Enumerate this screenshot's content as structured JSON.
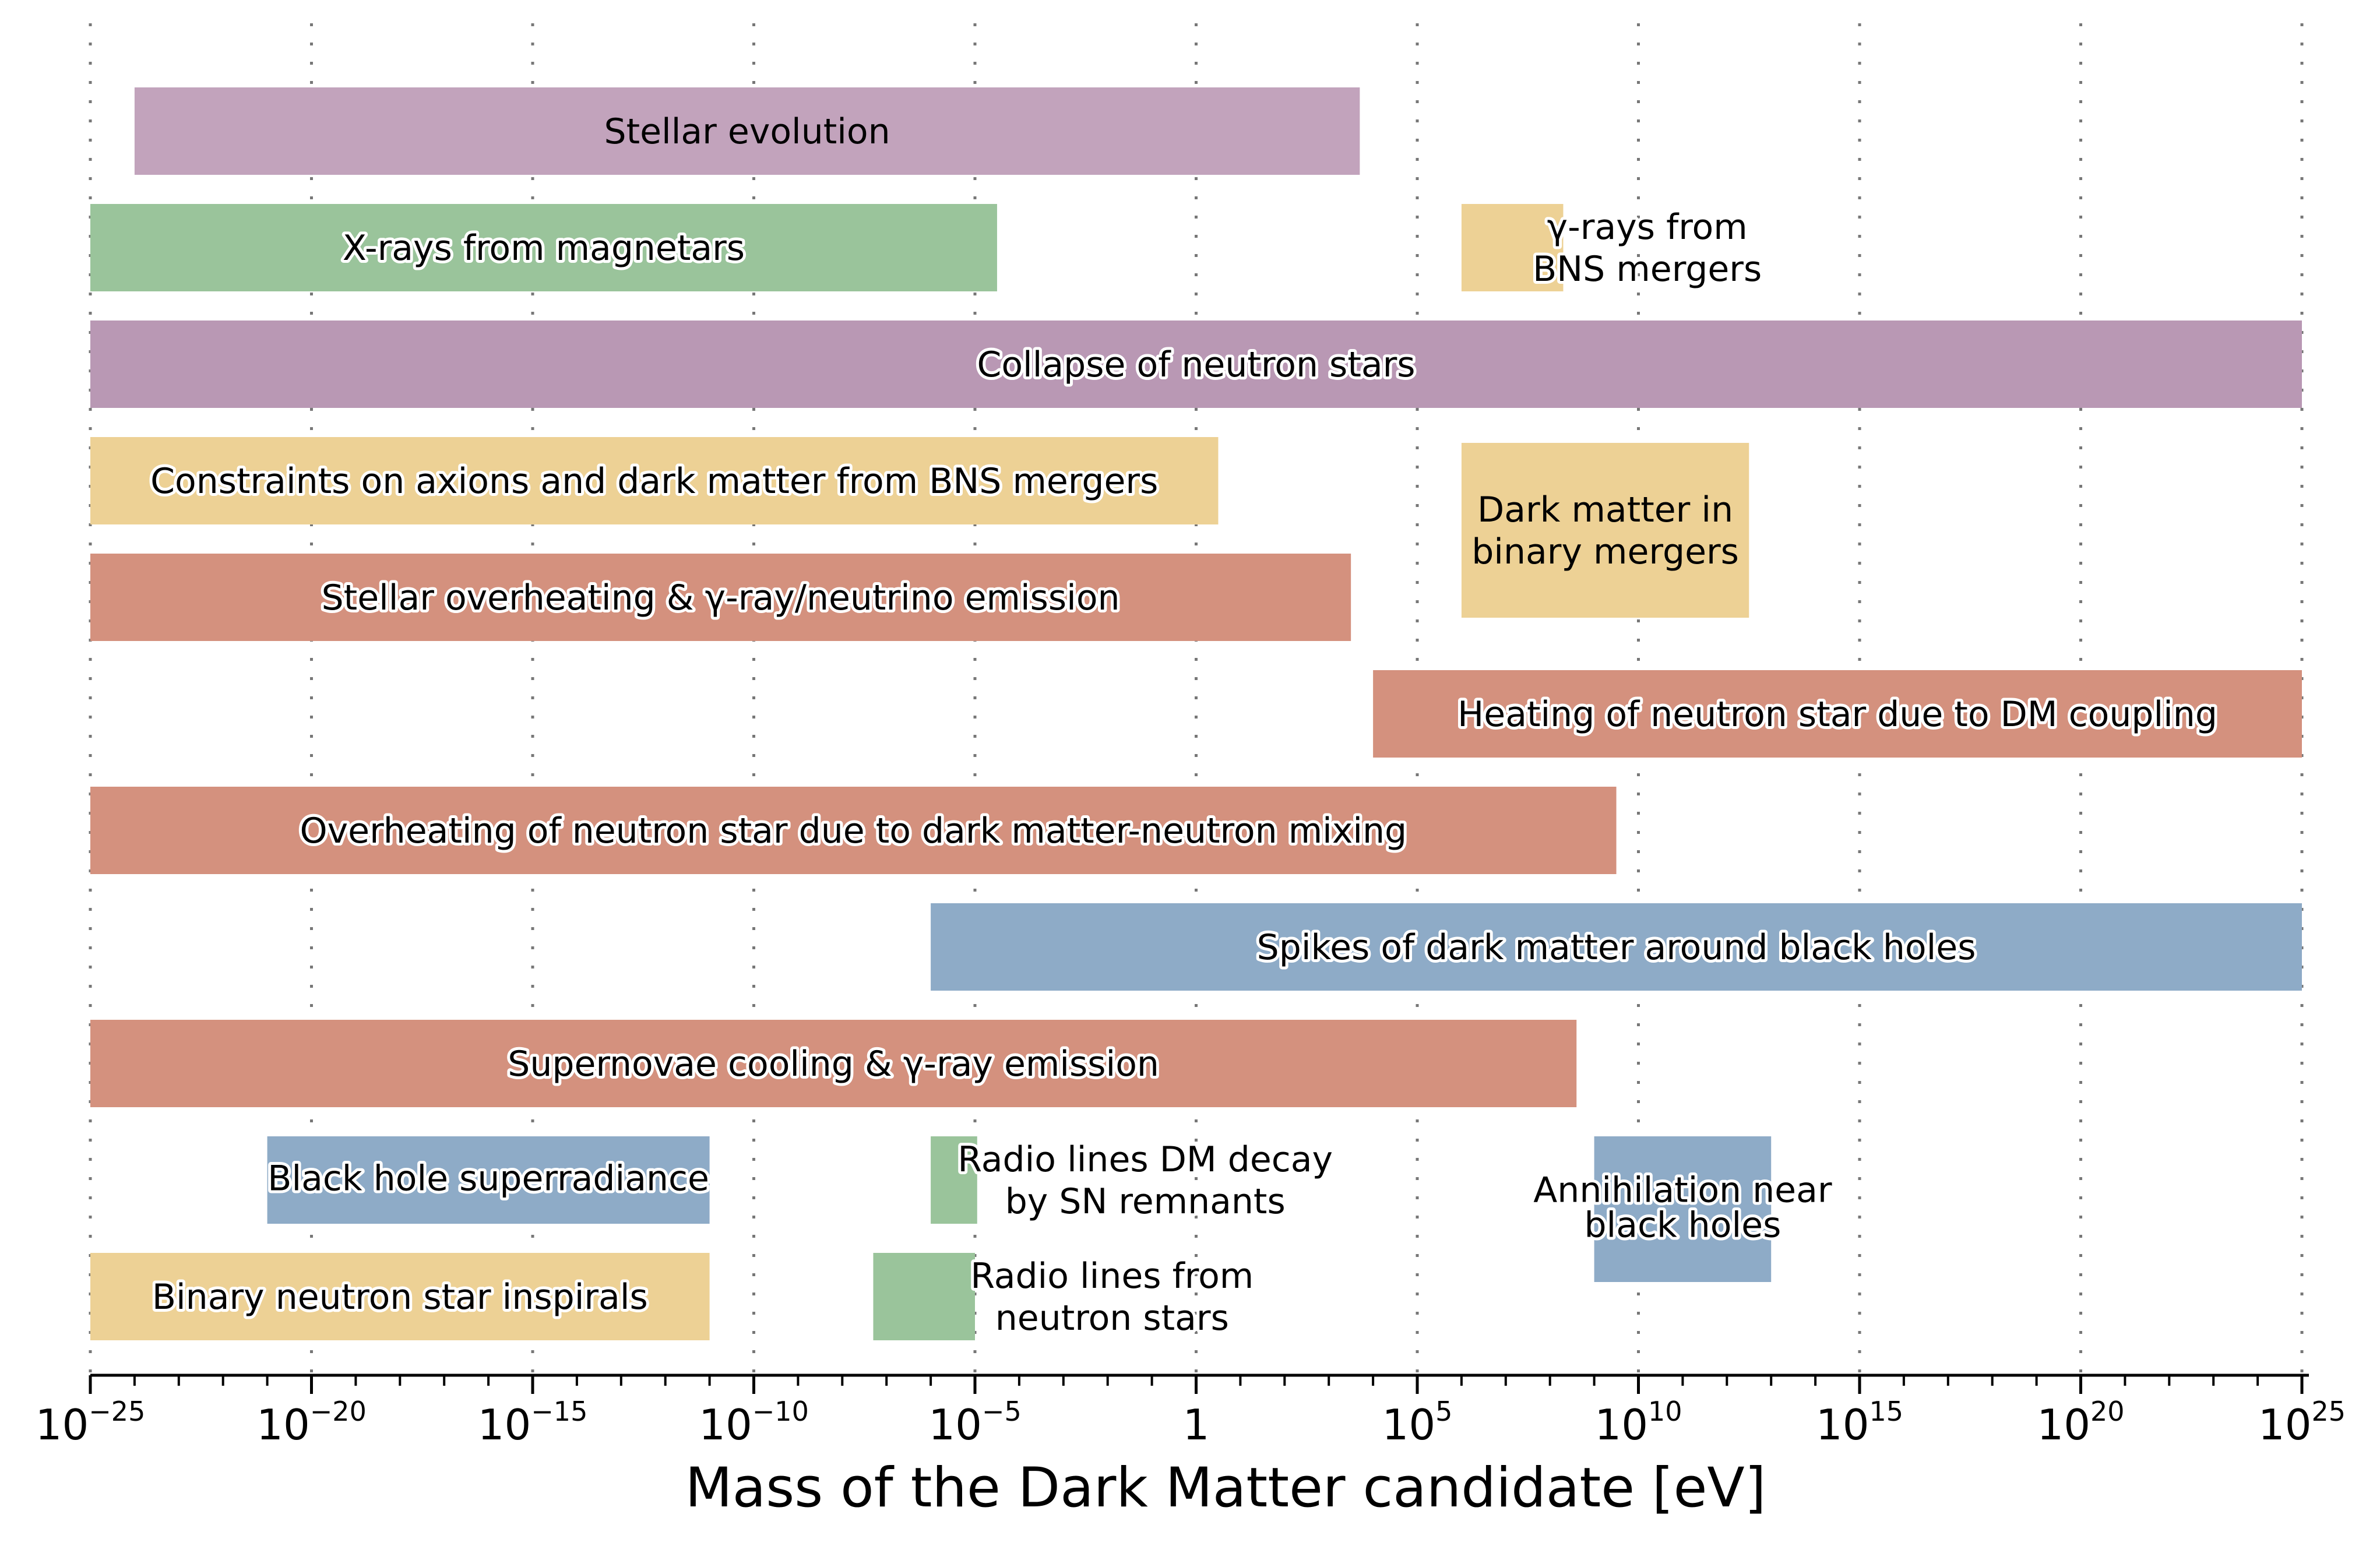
{
  "chart_data": {
    "type": "bar",
    "orientation": "horizontal",
    "xlabel": "Mass of the Dark Matter candidate [eV]",
    "xscale": "log",
    "xlim": [
      1e-25,
      1e+25
    ],
    "grid": "vertical dotted at every 1e5 decade",
    "x_tick_labels": [
      {
        "base": "10",
        "exp": "−25",
        "value": -25
      },
      {
        "base": "10",
        "exp": "−20",
        "value": -20
      },
      {
        "base": "10",
        "exp": "−15",
        "value": -15
      },
      {
        "base": "10",
        "exp": "−10",
        "value": -10
      },
      {
        "base": "10",
        "exp": "−5",
        "value": -5
      },
      {
        "base": "1",
        "exp": "",
        "value": 0
      },
      {
        "base": "10",
        "exp": "5",
        "value": 5
      },
      {
        "base": "10",
        "exp": "10",
        "value": 10
      },
      {
        "base": "10",
        "exp": "15",
        "value": 15
      },
      {
        "base": "10",
        "exp": "20",
        "value": 20
      },
      {
        "base": "10",
        "exp": "25",
        "value": 25
      }
    ],
    "colors": {
      "purple": "#c2a3bc",
      "purple_dark": "#b998b4",
      "green": "#9ac49b",
      "yellow": "#edd195",
      "red": "#d4917e",
      "blue": "#8eabc7"
    },
    "bars": [
      {
        "label": [
          "Stellar evolution"
        ],
        "x_min_log10": -24,
        "x_max_log10": 3.7,
        "row_top": 0.5,
        "row_bottom": 1.25,
        "color": "purple",
        "halo": false
      },
      {
        "label": [
          "X-rays from magnetars"
        ],
        "x_min_log10": -25,
        "x_max_log10": -4.5,
        "row_top": 1.5,
        "row_bottom": 2.25,
        "color": "green",
        "halo": true
      },
      {
        "label": [
          "γ-rays from",
          "BNS mergers"
        ],
        "x_min_log10": 6,
        "x_max_log10": 8.3,
        "row_top": 1.5,
        "row_bottom": 2.25,
        "color": "yellow",
        "halo": true,
        "label_x_log10": 10.2
      },
      {
        "label": [
          "Collapse of neutron stars"
        ],
        "x_min_log10": -25,
        "x_max_log10": 25,
        "row_top": 2.5,
        "row_bottom": 3.25,
        "color": "purple_dark",
        "halo": true
      },
      {
        "label": [
          "Constraints on axions and dark matter from BNS mergers"
        ],
        "x_min_log10": -25,
        "x_max_log10": 0.5,
        "row_top": 3.5,
        "row_bottom": 4.25,
        "color": "yellow",
        "halo": true
      },
      {
        "label": [
          "Dark matter in",
          "binary mergers"
        ],
        "x_min_log10": 6,
        "x_max_log10": 12.5,
        "row_top": 3.55,
        "row_bottom": 5.05,
        "color": "yellow",
        "halo": false
      },
      {
        "label": [
          "Stellar overheating & γ-ray/neutrino emission"
        ],
        "x_min_log10": -25,
        "x_max_log10": 3.5,
        "row_top": 4.5,
        "row_bottom": 5.25,
        "color": "red",
        "halo": true
      },
      {
        "label": [
          "Heating of neutron star due to DM coupling"
        ],
        "x_min_log10": 4,
        "x_max_log10": 25,
        "row_top": 5.5,
        "row_bottom": 6.25,
        "color": "red",
        "halo": true
      },
      {
        "label": [
          "Overheating of neutron star due to dark matter-neutron mixing"
        ],
        "x_min_log10": -25,
        "x_max_log10": 9.5,
        "row_top": 6.5,
        "row_bottom": 7.25,
        "color": "red",
        "halo": true
      },
      {
        "label": [
          "Spikes of dark matter around black holes"
        ],
        "x_min_log10": -6,
        "x_max_log10": 25,
        "row_top": 7.5,
        "row_bottom": 8.25,
        "color": "blue",
        "halo": true
      },
      {
        "label": [
          "Supernovae cooling & γ-ray emission"
        ],
        "x_min_log10": -25,
        "x_max_log10": 8.6,
        "row_top": 8.5,
        "row_bottom": 9.25,
        "color": "red",
        "halo": true
      },
      {
        "label": [
          "Black hole superradiance"
        ],
        "x_min_log10": -21,
        "x_max_log10": -11,
        "row_top": 9.5,
        "row_bottom": 10.25,
        "color": "blue",
        "halo": true,
        "small": true
      },
      {
        "label": [
          "Radio lines DM decay",
          "by SN remnants"
        ],
        "x_min_log10": -6,
        "x_max_log10": -4.95,
        "row_top": 9.5,
        "row_bottom": 10.25,
        "color": "green",
        "halo": true,
        "label_x_log10": -1.15
      },
      {
        "label": [
          "Annihilation near",
          "black holes"
        ],
        "x_min_log10": 9,
        "x_max_log10": 13,
        "row_top": 9.5,
        "row_bottom": 10.75,
        "color": "blue",
        "halo": true,
        "small": true
      },
      {
        "label": [
          "Binary neutron star inspirals"
        ],
        "x_min_log10": -25,
        "x_max_log10": -11,
        "row_top": 10.5,
        "row_bottom": 11.25,
        "color": "yellow",
        "halo": true
      },
      {
        "label": [
          "Radio lines from",
          "neutron stars"
        ],
        "x_min_log10": -7.3,
        "x_max_log10": -5,
        "row_top": 10.5,
        "row_bottom": 11.25,
        "color": "green",
        "halo": true,
        "label_x_log10": -1.9
      }
    ]
  }
}
